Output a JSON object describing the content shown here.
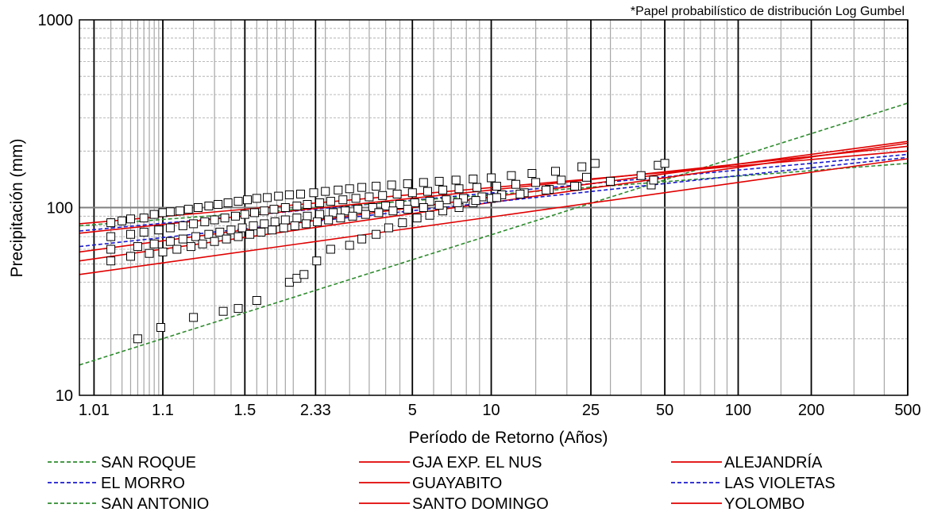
{
  "chart_data": {
    "type": "line",
    "note": "*Papel probabilístico de distribución Log Gumbel",
    "xlabel": "Período de Retorno (Años)",
    "ylabel": "Precipitación (mm)",
    "x_scale": "gumbel",
    "y_scale": "log",
    "xlim": [
      1.005,
      500
    ],
    "ylim": [
      10,
      1000
    ],
    "x_ticks": [
      {
        "value": 1.01,
        "label": "1.01"
      },
      {
        "value": 1.1,
        "label": "1.1"
      },
      {
        "value": 1.5,
        "label": "1.5"
      },
      {
        "value": 2.33,
        "label": "2.33"
      },
      {
        "value": 5,
        "label": "5"
      },
      {
        "value": 10,
        "label": "10"
      },
      {
        "value": 25,
        "label": "25"
      },
      {
        "value": 50,
        "label": "50"
      },
      {
        "value": 100,
        "label": "100"
      },
      {
        "value": 200,
        "label": "200"
      },
      {
        "value": 500,
        "label": "500"
      }
    ],
    "y_ticks": [
      {
        "value": 10,
        "label": "10"
      },
      {
        "value": 100,
        "label": "100"
      },
      {
        "value": 1000,
        "label": "1000"
      }
    ],
    "grid": true,
    "legend_position": "bottom",
    "series": [
      {
        "name": "SAN ROQUE",
        "color": "#2e8b2e",
        "dash": true,
        "x": [
          1.005,
          500
        ],
        "y": [
          14.5,
          360
        ]
      },
      {
        "name": "EL MORRO",
        "color": "#1a1acd",
        "dash": true,
        "x": [
          1.005,
          500
        ],
        "y": [
          75,
          192
        ]
      },
      {
        "name": "SAN ANTONIO",
        "color": "#2e8b2e",
        "dash": true,
        "x": [
          1.005,
          500
        ],
        "y": [
          80,
          172
        ]
      },
      {
        "name": "GJA EXP. EL NUS",
        "color": "#e00000",
        "dash": false,
        "x": [
          1.005,
          500
        ],
        "y": [
          82,
          200
        ]
      },
      {
        "name": "GUAYABITO",
        "color": "#e00000",
        "dash": false,
        "x": [
          1.005,
          500
        ],
        "y": [
          73,
          212
        ]
      },
      {
        "name": "SANTO DOMINGO",
        "color": "#e00000",
        "dash": false,
        "x": [
          1.005,
          500
        ],
        "y": [
          52,
          220
        ]
      },
      {
        "name": "ALEJANDRÍA",
        "color": "#e00000",
        "dash": false,
        "x": [
          1.005,
          500
        ],
        "y": [
          44,
          182
        ]
      },
      {
        "name": "LAS VIOLETAS",
        "color": "#1a1acd",
        "dash": true,
        "x": [
          1.005,
          500
        ],
        "y": [
          62,
          185
        ]
      },
      {
        "name": "YOLOMBO",
        "color": "#e00000",
        "dash": false,
        "x": [
          1.005,
          500
        ],
        "y": [
          58,
          225
        ]
      }
    ],
    "observed_points": [
      [
        1.05,
        20
      ],
      [
        1.095,
        23
      ],
      [
        1.2,
        26
      ],
      [
        1.35,
        28
      ],
      [
        1.45,
        29
      ],
      [
        1.6,
        32
      ],
      [
        1.95,
        40
      ],
      [
        2.05,
        42
      ],
      [
        2.15,
        44
      ],
      [
        2.35,
        52
      ],
      [
        2.6,
        60
      ],
      [
        3.0,
        63
      ],
      [
        3.3,
        68
      ],
      [
        3.7,
        72
      ],
      [
        4.1,
        78
      ],
      [
        4.6,
        83
      ],
      [
        5.2,
        88
      ],
      [
        5.8,
        91
      ],
      [
        6.5,
        96
      ],
      [
        7.5,
        100
      ],
      [
        8.5,
        106
      ],
      [
        10.0,
        112
      ],
      [
        1.02,
        83
      ],
      [
        1.03,
        85
      ],
      [
        1.04,
        87
      ],
      [
        1.06,
        88
      ],
      [
        1.08,
        92
      ],
      [
        1.1,
        94
      ],
      [
        1.12,
        95
      ],
      [
        1.15,
        96
      ],
      [
        1.18,
        98
      ],
      [
        1.22,
        100
      ],
      [
        1.27,
        102
      ],
      [
        1.32,
        104
      ],
      [
        1.38,
        106
      ],
      [
        1.45,
        108
      ],
      [
        1.52,
        110
      ],
      [
        1.6,
        112
      ],
      [
        1.7,
        113
      ],
      [
        1.82,
        115
      ],
      [
        1.95,
        117
      ],
      [
        2.1,
        118
      ],
      [
        2.3,
        120
      ],
      [
        2.5,
        122
      ],
      [
        2.75,
        124
      ],
      [
        3.0,
        126
      ],
      [
        3.3,
        128
      ],
      [
        3.7,
        130
      ],
      [
        4.2,
        132
      ],
      [
        4.8,
        134
      ],
      [
        5.5,
        136
      ],
      [
        6.3,
        138
      ],
      [
        7.3,
        140
      ],
      [
        8.5,
        142
      ],
      [
        10.0,
        144
      ],
      [
        12.0,
        148
      ],
      [
        14.5,
        152
      ],
      [
        18.0,
        156
      ],
      [
        23.0,
        165
      ],
      [
        26.0,
        172
      ],
      [
        47.0,
        168
      ],
      [
        50.0,
        172
      ],
      [
        1.02,
        70
      ],
      [
        1.04,
        72
      ],
      [
        1.06,
        74
      ],
      [
        1.09,
        76
      ],
      [
        1.12,
        78
      ],
      [
        1.16,
        80
      ],
      [
        1.2,
        82
      ],
      [
        1.25,
        84
      ],
      [
        1.3,
        86
      ],
      [
        1.36,
        88
      ],
      [
        1.43,
        90
      ],
      [
        1.5,
        92
      ],
      [
        1.58,
        94
      ],
      [
        1.67,
        96
      ],
      [
        1.77,
        98
      ],
      [
        1.9,
        100
      ],
      [
        2.05,
        102
      ],
      [
        2.2,
        104
      ],
      [
        2.4,
        106
      ],
      [
        2.6,
        108
      ],
      [
        2.85,
        110
      ],
      [
        3.15,
        112
      ],
      [
        3.5,
        114
      ],
      [
        3.9,
        116
      ],
      [
        4.4,
        118
      ],
      [
        5.0,
        120
      ],
      [
        5.7,
        122
      ],
      [
        6.5,
        124
      ],
      [
        7.5,
        126
      ],
      [
        8.8,
        128
      ],
      [
        10.5,
        130
      ],
      [
        12.5,
        133
      ],
      [
        15.0,
        136
      ],
      [
        19.0,
        140
      ],
      [
        24.0,
        145
      ],
      [
        1.02,
        60
      ],
      [
        1.05,
        62
      ],
      [
        1.08,
        64
      ],
      [
        1.12,
        66
      ],
      [
        1.16,
        68
      ],
      [
        1.21,
        70
      ],
      [
        1.27,
        72
      ],
      [
        1.33,
        74
      ],
      [
        1.4,
        76
      ],
      [
        1.48,
        78
      ],
      [
        1.57,
        80
      ],
      [
        1.67,
        82
      ],
      [
        1.78,
        84
      ],
      [
        1.9,
        86
      ],
      [
        2.05,
        88
      ],
      [
        2.2,
        90
      ],
      [
        2.4,
        92
      ],
      [
        2.65,
        94
      ],
      [
        2.9,
        96
      ],
      [
        3.2,
        98
      ],
      [
        3.6,
        100
      ],
      [
        4.0,
        102
      ],
      [
        4.5,
        104
      ],
      [
        5.1,
        106
      ],
      [
        5.8,
        108
      ],
      [
        6.7,
        110
      ],
      [
        7.8,
        112
      ],
      [
        9.2,
        114
      ],
      [
        11.0,
        117
      ],
      [
        13.5,
        120
      ],
      [
        17.0,
        125
      ],
      [
        22.0,
        130
      ],
      [
        44.0,
        132
      ],
      [
        45.0,
        140
      ],
      [
        1.02,
        52
      ],
      [
        1.04,
        55
      ],
      [
        1.07,
        57
      ],
      [
        1.1,
        58
      ],
      [
        1.14,
        60
      ],
      [
        1.19,
        62
      ],
      [
        1.24,
        64
      ],
      [
        1.3,
        66
      ],
      [
        1.37,
        68
      ],
      [
        1.45,
        70
      ],
      [
        1.54,
        72
      ],
      [
        1.64,
        74
      ],
      [
        1.75,
        76
      ],
      [
        1.88,
        78
      ],
      [
        2.02,
        80
      ],
      [
        2.18,
        82
      ],
      [
        2.36,
        84
      ],
      [
        2.56,
        86
      ],
      [
        2.8,
        88
      ],
      [
        3.07,
        90
      ],
      [
        3.4,
        92
      ],
      [
        3.78,
        94
      ],
      [
        4.25,
        96
      ],
      [
        4.8,
        98
      ],
      [
        5.5,
        100
      ],
      [
        6.3,
        103
      ],
      [
        7.4,
        106
      ],
      [
        8.7,
        109
      ],
      [
        10.5,
        113
      ],
      [
        13.0,
        118
      ],
      [
        16.5,
        124
      ],
      [
        21.5,
        130
      ],
      [
        30.0,
        138
      ],
      [
        40.0,
        148
      ]
    ]
  }
}
